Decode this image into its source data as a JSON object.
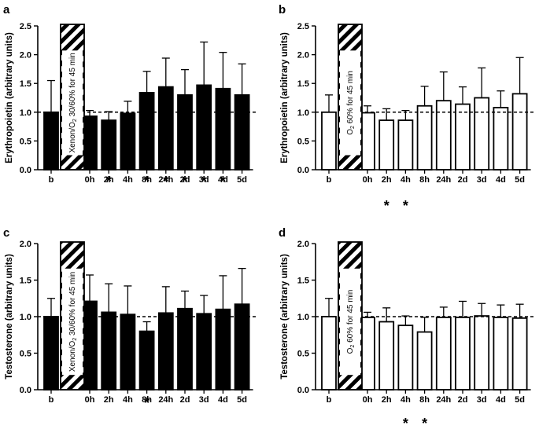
{
  "chart_data": [
    {
      "panel": "a",
      "type": "bar",
      "ylabel": "Erythropoietin (arbitrary units)",
      "ylim": [
        0,
        2.5
      ],
      "yticks": [
        "0.0",
        "0.5",
        "1.0",
        "1.5",
        "2.0",
        "2.5"
      ],
      "reference_line": 1.0,
      "bar_fill": "#000000",
      "baseline": {
        "label": "b",
        "value": 1.0,
        "error": 0.55
      },
      "exposure_label": "Xenon/O₂ 30/60% for 45 min",
      "exposure_parts": [
        "Xenon/O",
        "2",
        " 30/60% for 45 min"
      ],
      "categories": [
        "0h",
        "2h",
        "4h",
        "8h",
        "24h",
        "2d",
        "3d",
        "4d",
        "5d"
      ],
      "values": [
        0.93,
        0.86,
        0.98,
        1.34,
        1.44,
        1.3,
        1.47,
        1.41,
        1.3
      ],
      "errors": [
        0.1,
        0.15,
        0.21,
        0.37,
        0.5,
        0.44,
        0.75,
        0.63,
        0.54
      ],
      "significant": [
        "2h",
        "8h",
        "24h",
        "2d",
        "3d",
        "4d"
      ],
      "marker": "*"
    },
    {
      "panel": "b",
      "type": "bar",
      "ylabel": "Erythropoietin (arbitrary units)",
      "ylim": [
        0,
        2.5
      ],
      "yticks": [
        "0.0",
        "0.5",
        "1.0",
        "1.5",
        "2.0",
        "2.5"
      ],
      "reference_line": 1.0,
      "bar_fill": "#ffffff",
      "baseline": {
        "label": "b",
        "value": 1.0,
        "error": 0.3
      },
      "exposure_label": "O₂ 60% for 45 min",
      "exposure_parts": [
        "O",
        "2",
        " 60% for 45 min"
      ],
      "categories": [
        "0h",
        "2h",
        "4h",
        "8h",
        "24h",
        "2d",
        "3d",
        "4d",
        "5d"
      ],
      "values": [
        0.99,
        0.86,
        0.86,
        1.11,
        1.2,
        1.14,
        1.25,
        1.08,
        1.32
      ],
      "errors": [
        0.12,
        0.2,
        0.17,
        0.34,
        0.5,
        0.3,
        0.52,
        0.29,
        0.63
      ],
      "significant": [
        "2h",
        "4h"
      ],
      "marker": "*"
    },
    {
      "panel": "c",
      "type": "bar",
      "ylabel": "Testosterone (arbitrary units)",
      "ylim": [
        0,
        2.0
      ],
      "yticks": [
        "0.0",
        "0.5",
        "1.0",
        "1.5",
        "2.0"
      ],
      "reference_line": 1.0,
      "bar_fill": "#000000",
      "baseline": {
        "label": "b",
        "value": 1.0,
        "error": 0.25
      },
      "exposure_label": "Xenon/O₂ 30/60% for 45 min",
      "exposure_parts": [
        "Xenon/O",
        "2",
        " 30/60% for 45 min"
      ],
      "categories": [
        "0h",
        "2h",
        "4h",
        "8h",
        "24h",
        "2d",
        "3d",
        "4d",
        "5d"
      ],
      "values": [
        1.21,
        1.06,
        1.03,
        0.8,
        1.05,
        1.11,
        1.04,
        1.1,
        1.17
      ],
      "errors": [
        0.36,
        0.39,
        0.39,
        0.13,
        0.36,
        0.24,
        0.25,
        0.46,
        0.49
      ],
      "significant": [
        "8h"
      ],
      "marker": "*"
    },
    {
      "panel": "d",
      "type": "bar",
      "ylabel": "Testosterone (arbitrary units)",
      "ylim": [
        0,
        2.0
      ],
      "yticks": [
        "0.0",
        "0.5",
        "1.0",
        "1.5",
        "2.0"
      ],
      "reference_line": 1.0,
      "bar_fill": "#ffffff",
      "baseline": {
        "label": "b",
        "value": 1.0,
        "error": 0.25
      },
      "exposure_label": "O₂ 60% for 45 min",
      "exposure_parts": [
        "O",
        "2",
        " 60% for 45 min"
      ],
      "categories": [
        "0h",
        "2h",
        "4h",
        "8h",
        "24h",
        "2d",
        "3d",
        "4d",
        "5d"
      ],
      "values": [
        0.99,
        0.93,
        0.88,
        0.79,
        0.99,
        0.99,
        1.01,
        0.99,
        0.98
      ],
      "errors": [
        0.07,
        0.19,
        0.13,
        0.2,
        0.14,
        0.22,
        0.17,
        0.17,
        0.19
      ],
      "significant": [
        "4h",
        "8h"
      ],
      "marker": "*"
    }
  ]
}
